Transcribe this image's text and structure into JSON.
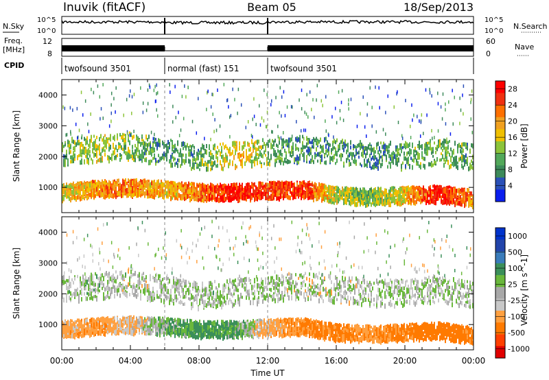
{
  "header": {
    "station": "Inuvik (fitACF)",
    "beam": "Beam 05",
    "date": "18/Sep/2013"
  },
  "noise_panel": {
    "left_label": "N.Sky",
    "right_label": "N.Search",
    "tick_top": "10^5",
    "tick_bottom": "10^0"
  },
  "freq_panel": {
    "left_label_1": "Freq.",
    "left_label_2": "[MHz]",
    "left_tick_top": "12",
    "left_tick_bottom": "8",
    "right_label": "Nave",
    "right_tick_top": "60",
    "right_tick_bottom": "0"
  },
  "cpid_panel": {
    "label": "CPID",
    "segments": [
      {
        "text": "twofsound 3501",
        "start_hour": 0,
        "end_hour": 6
      },
      {
        "text": "normal (fast) 151",
        "start_hour": 6,
        "end_hour": 12
      },
      {
        "text": "twofsound 3501",
        "start_hour": 12,
        "end_hour": 24
      }
    ]
  },
  "x_axis": {
    "label": "Time UT",
    "ticks": [
      "00:00",
      "04:00",
      "08:00",
      "12:00",
      "16:00",
      "20:00",
      "00:00"
    ],
    "range_hours": [
      0,
      24
    ]
  },
  "y_axis": {
    "label": "Slant Range [km]",
    "ticks": [
      "1000",
      "2000",
      "3000",
      "4000"
    ],
    "range_km": [
      180,
      4500
    ]
  },
  "colors": {
    "power": [
      "#0a1eee",
      "#2a50b8",
      "#3d8a5a",
      "#52a85a",
      "#8cc43a",
      "#f0c000",
      "#f0a020",
      "#ff7000",
      "#f03010",
      "#ff0000"
    ],
    "velocity": [
      "#0033cc",
      "#2244aa",
      "#3a7cbb",
      "#3b8f5a",
      "#6ab83c",
      "#a8a8a8",
      "#c8c8c8",
      "#ffa040",
      "#ff7a00",
      "#ff4000",
      "#e00000"
    ]
  },
  "chart_data": [
    {
      "type": "heatmap",
      "title": "Power",
      "colorbar_label": "Power [dB]",
      "colorbar_ticks": [
        "4",
        "8",
        "12",
        "16",
        "20",
        "24",
        "28"
      ],
      "colorbar_range": [
        0,
        30
      ],
      "x": [
        0,
        2,
        4,
        6,
        8,
        10,
        12,
        14,
        16,
        18,
        20,
        22,
        24
      ],
      "echo_bands_km": [
        {
          "name": "lower band",
          "center_km": [
            900,
            1000,
            1050,
            1000,
            900,
            900,
            950,
            1000,
            800,
            750,
            800,
            850,
            700
          ],
          "power_db": [
            16,
            20,
            22,
            18,
            22,
            28,
            24,
            26,
            14,
            12,
            18,
            28,
            20
          ]
        },
        {
          "name": "upper band",
          "center_km": [
            2200,
            2300,
            2400,
            2200,
            2000,
            2100,
            2200,
            2300,
            2200,
            2100,
            2100,
            2200,
            2000
          ],
          "power_db": [
            10,
            14,
            12,
            8,
            10,
            18,
            12,
            8,
            10,
            8,
            10,
            12,
            10
          ]
        }
      ]
    },
    {
      "type": "heatmap",
      "title": "Velocity",
      "colorbar_label": "Velocity [m s^-1]",
      "colorbar_ticks": [
        "1000",
        "500",
        "100",
        "25",
        "-25",
        "-100",
        "-500",
        "-1000"
      ],
      "colorbar_range": [
        -1000,
        1000
      ],
      "x": [
        0,
        2,
        4,
        6,
        8,
        10,
        12,
        14,
        16,
        18,
        20,
        22,
        24
      ],
      "echo_bands_km": [
        {
          "name": "lower band",
          "center_km": [
            900,
            1000,
            1050,
            1000,
            900,
            900,
            950,
            1000,
            800,
            750,
            800,
            850,
            700
          ],
          "velocity_ms": [
            -150,
            -200,
            -100,
            50,
            150,
            100,
            -150,
            -250,
            -300,
            -200,
            -300,
            -400,
            -300
          ]
        },
        {
          "name": "upper band",
          "center_km": [
            2200,
            2300,
            2400,
            2200,
            2000,
            2100,
            2200,
            2300,
            2200,
            2100,
            2100,
            2200,
            2000
          ],
          "velocity_ms": [
            0,
            10,
            -20,
            0,
            0,
            5,
            0,
            -10,
            -20,
            0,
            0,
            0,
            0
          ]
        }
      ]
    }
  ]
}
